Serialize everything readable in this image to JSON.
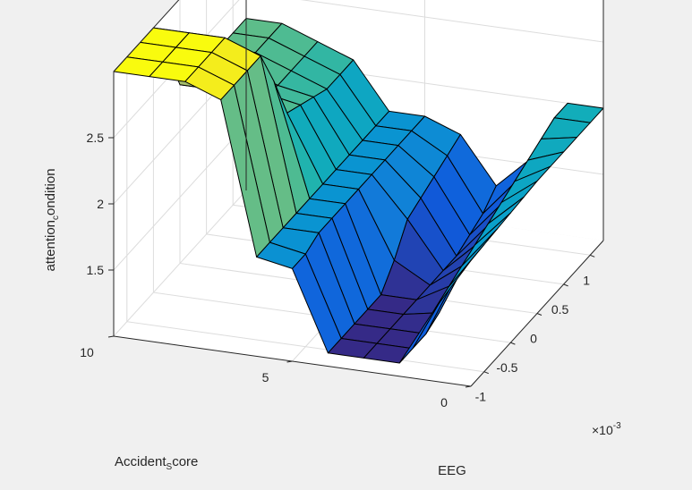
{
  "chart_data": {
    "type": "surface",
    "title": "",
    "xlabel": "EEG",
    "ylabel": "Accident_score",
    "ylabel_main": "Accident",
    "ylabel_sub": "S",
    "ylabel_tail": "core",
    "zlabel": "attention_condition",
    "zlabel_main": "attention",
    "zlabel_sub": "c",
    "zlabel_tail": "ondition",
    "x_exponent_prefix": "×10",
    "x_exponent_power": "-3",
    "x_ticks": [
      "-1",
      "-0.5",
      "0",
      "0.5",
      "1"
    ],
    "y_ticks": [
      "0",
      "5",
      "10"
    ],
    "z_ticks": [
      "1.5",
      "2",
      "2.5"
    ],
    "xlim": [
      -1.25,
      1.25
    ],
    "ylim": [
      0,
      10
    ],
    "zlim": [
      1,
      3
    ],
    "grid": true,
    "colormap": "parula",
    "x": [
      -1.25,
      -1.0,
      -0.75,
      -0.5,
      -0.25,
      0.0,
      0.25,
      0.5,
      0.75,
      1.0,
      1.25
    ],
    "y": [
      0,
      1,
      2,
      3,
      4,
      5,
      6,
      7,
      8,
      9,
      10
    ],
    "z": [
      [
        1.95,
        1.96,
        1.97,
        1.98,
        1.99,
        2.0,
        2.0,
        2.0,
        2.0,
        2.0,
        2.0
      ],
      [
        1.55,
        1.6,
        1.65,
        1.7,
        1.75,
        1.8,
        1.85,
        1.9,
        1.95,
        2.0,
        2.0
      ],
      [
        1.1,
        1.1,
        1.1,
        1.15,
        1.25,
        1.3,
        1.35,
        1.4,
        1.45,
        1.5,
        1.55
      ],
      [
        1.1,
        1.1,
        1.1,
        1.1,
        1.1,
        1.1,
        1.1,
        1.1,
        1.15,
        1.2,
        1.3
      ],
      [
        1.1,
        1.1,
        1.1,
        1.1,
        1.1,
        1.25,
        1.45,
        1.5,
        1.55,
        1.6,
        1.65
      ],
      [
        1.7,
        1.7,
        1.75,
        1.75,
        1.75,
        1.75,
        1.75,
        1.75,
        1.75,
        1.75,
        1.75
      ],
      [
        1.75,
        1.75,
        1.75,
        1.75,
        1.75,
        1.75,
        1.75,
        1.75,
        1.75,
        1.75,
        1.75
      ],
      [
        2.9,
        2.9,
        2.9,
        2.9,
        2.6,
        2.25,
        2.2,
        2.15,
        2.1,
        2.1,
        2.1
      ],
      [
        3.0,
        3.0,
        3.0,
        3.0,
        2.65,
        2.3,
        2.25,
        2.2,
        2.2,
        2.2,
        2.2
      ],
      [
        3.0,
        3.0,
        3.0,
        3.0,
        2.7,
        2.35,
        2.3,
        2.3,
        2.3,
        2.3,
        2.3
      ],
      [
        3.0,
        3.0,
        3.0,
        3.0,
        2.7,
        2.35,
        2.3,
        2.3,
        2.3,
        2.3,
        2.3
      ]
    ]
  }
}
